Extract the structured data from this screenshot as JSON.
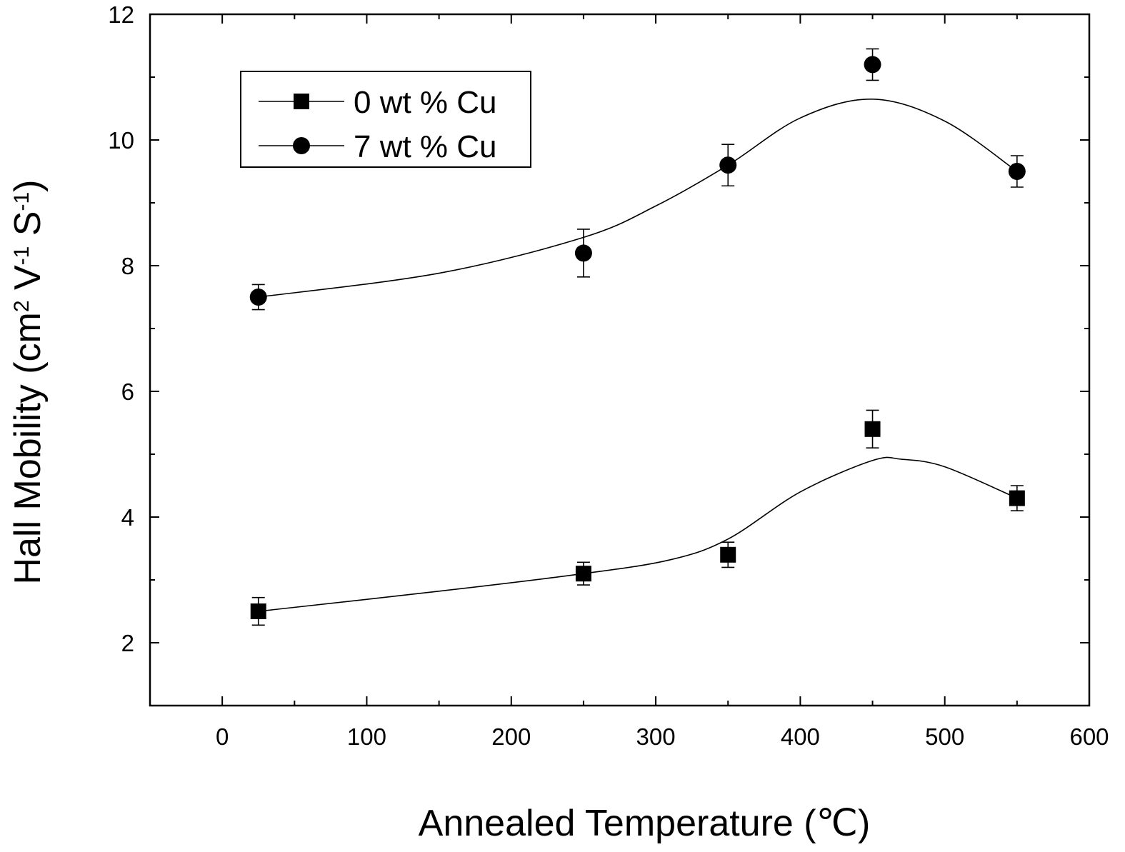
{
  "chart_data": {
    "type": "scatter",
    "xlabel": "Annealed Temperature (℃)",
    "ylabel": "Hall Mobility (cm² V⁻¹ S⁻¹)",
    "ylabel_parts": {
      "base": "Hall Mobility (cm",
      "sup1": "2",
      "mid1": " V",
      "sup2": "-1",
      "mid2": " S",
      "sup3": "-1",
      "end": ")"
    },
    "xlim": [
      -50,
      600
    ],
    "ylim": [
      1,
      12
    ],
    "xticks": [
      0,
      100,
      200,
      300,
      400,
      500,
      600
    ],
    "yticks": [
      2,
      4,
      6,
      8,
      10,
      12
    ],
    "grid": false,
    "legend_position": "top-left",
    "series": [
      {
        "name": "0 wt % Cu",
        "marker": "square",
        "x": [
          25,
          250,
          350,
          450,
          550
        ],
        "y": [
          2.5,
          3.1,
          3.4,
          5.4,
          4.3
        ],
        "yerr": [
          0.22,
          0.18,
          0.2,
          0.3,
          0.2
        ],
        "fit_curve": [
          [
            25,
            2.5
          ],
          [
            150,
            2.82
          ],
          [
            250,
            3.1
          ],
          [
            310,
            3.32
          ],
          [
            350,
            3.65
          ],
          [
            400,
            4.4
          ],
          [
            450,
            4.9
          ],
          [
            470,
            4.92
          ],
          [
            500,
            4.8
          ],
          [
            550,
            4.3
          ]
        ]
      },
      {
        "name": "7 wt % Cu",
        "marker": "circle",
        "x": [
          25,
          250,
          350,
          450,
          550
        ],
        "y": [
          7.5,
          8.2,
          9.6,
          11.2,
          9.5
        ],
        "yerr": [
          0.2,
          0.38,
          0.33,
          0.25,
          0.25
        ],
        "fit_curve": [
          [
            25,
            7.5
          ],
          [
            150,
            7.88
          ],
          [
            250,
            8.45
          ],
          [
            300,
            8.95
          ],
          [
            350,
            9.6
          ],
          [
            400,
            10.35
          ],
          [
            450,
            10.65
          ],
          [
            500,
            10.3
          ],
          [
            550,
            9.5
          ]
        ]
      }
    ]
  }
}
